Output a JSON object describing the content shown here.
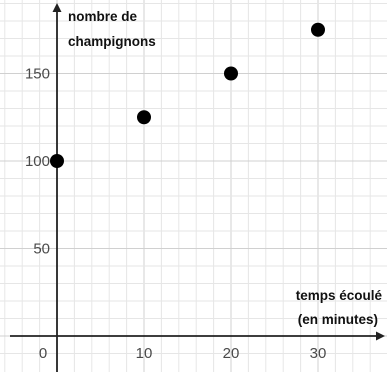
{
  "chart_data": {
    "type": "scatter",
    "xlabel": [
      "temps écoulé",
      "(en minutes)"
    ],
    "ylabel": [
      "nombre de",
      "champignons"
    ],
    "x_ticks": [
      "0",
      "10",
      "20",
      "30"
    ],
    "y_ticks": [
      "50",
      "100",
      "150"
    ],
    "xlim": [
      -5,
      38
    ],
    "ylim": [
      -8,
      185
    ],
    "grid": true,
    "series": [
      {
        "x": [
          0,
          10,
          20,
          30
        ],
        "y": [
          100,
          125,
          150,
          175
        ]
      }
    ],
    "colors": {
      "grid": "#e6e6e6",
      "axis": "#222222",
      "point": "#000000",
      "tick_text": "#4a4a4a"
    }
  }
}
